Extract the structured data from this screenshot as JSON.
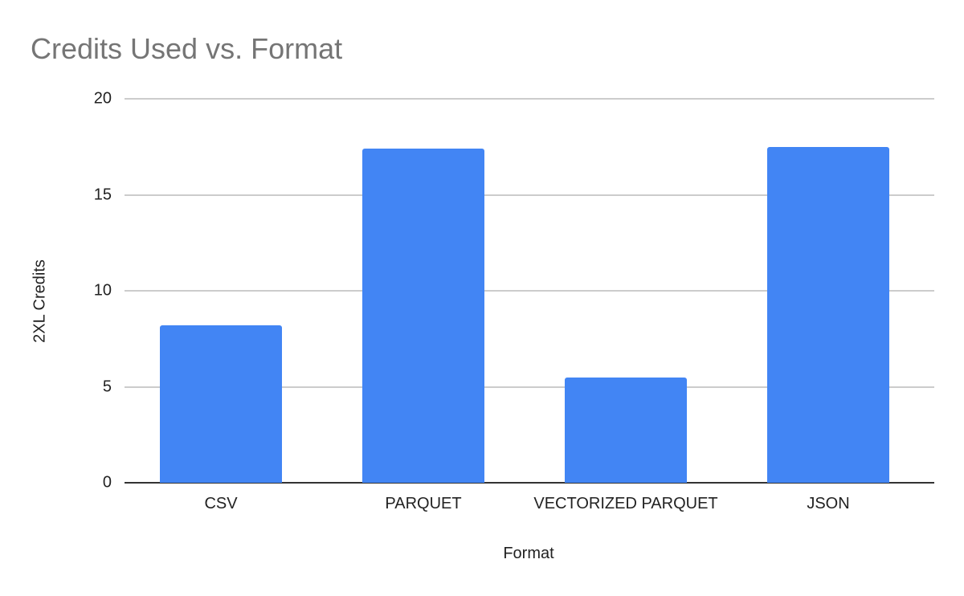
{
  "chart_data": {
    "type": "bar",
    "title": "Credits Used vs. Format",
    "xlabel": "Format",
    "ylabel": "2XL Credits",
    "categories": [
      "CSV",
      "PARQUET",
      "VECTORIZED PARQUET",
      "JSON"
    ],
    "values": [
      8.2,
      17.4,
      5.5,
      17.5
    ],
    "ylim": [
      0,
      20
    ],
    "yticks": [
      "0",
      "5",
      "10",
      "15",
      "20"
    ],
    "grid": true,
    "legend": null,
    "bar_color": "#4285f4"
  }
}
